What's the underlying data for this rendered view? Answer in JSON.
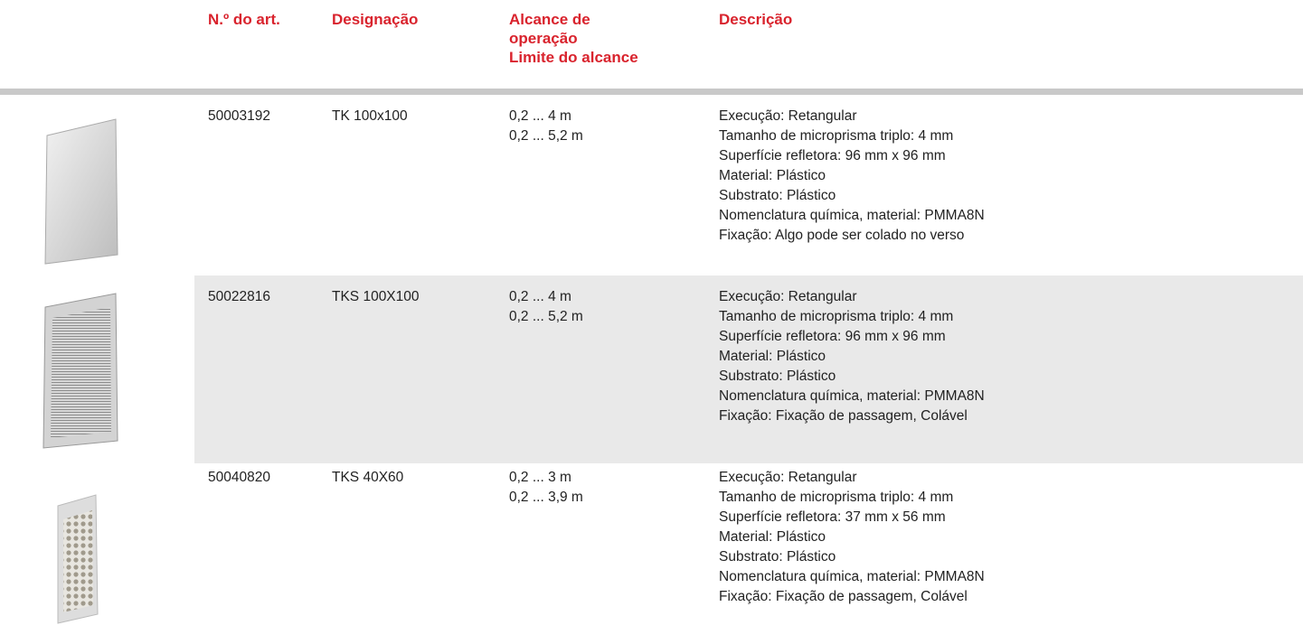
{
  "header": {
    "columns": [
      [
        "N.º do art."
      ],
      [
        "Designação"
      ],
      [
        "Alcance de",
        "operação",
        "Limite do alcance"
      ],
      [
        "Descrição"
      ]
    ]
  },
  "table": {
    "rows": [
      {
        "article": "50003192",
        "designation": "TK 100x100",
        "ranges": [
          "0,2 ... 4 m",
          "0,2 ... 5,2 m"
        ],
        "description": [
          "Execução: Retangular",
          "Tamanho de microprisma triplo: 4 mm",
          "Superfície refletora: 96 mm x 96 mm",
          "Material: Plástico",
          "Substrato: Plástico",
          "Nomenclatura química, material: PMMA8N",
          "Fixação: Algo pode ser colado no verso"
        ]
      },
      {
        "article": "50022816",
        "designation": "TKS 100X100",
        "ranges": [
          "0,2 ... 4 m",
          "0,2 ... 5,2 m"
        ],
        "description": [
          "Execução: Retangular",
          "Tamanho de microprisma triplo: 4 mm",
          "Superfície refletora: 96 mm x 96 mm",
          "Material: Plástico",
          "Substrato: Plástico",
          "Nomenclatura química, material: PMMA8N",
          "Fixação: Fixação de passagem, Colável"
        ]
      },
      {
        "article": "50040820",
        "designation": "TKS 40X60",
        "ranges": [
          "0,2 ... 3 m",
          "0,2 ... 3,9 m"
        ],
        "description": [
          "Execução: Retangular",
          "Tamanho de microprisma triplo: 4 mm",
          "Superfície refletora: 37 mm x 56 mm",
          "Material: Plástico",
          "Substrato: Plástico",
          "Nomenclatura química, material: PMMA8N",
          "Fixação: Fixação de passagem, Colável"
        ]
      }
    ]
  }
}
